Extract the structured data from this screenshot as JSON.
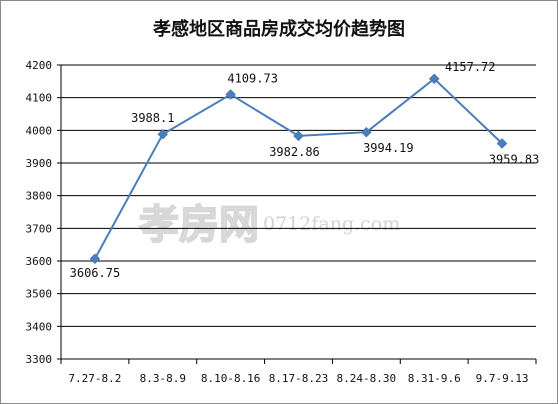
{
  "chart_data": {
    "type": "line",
    "title": "孝感地区商品房成交均价趋势图",
    "categories": [
      "7.27-8.2",
      "8.3-8.9",
      "8.10-8.16",
      "8.17-8.23",
      "8.24-8.30",
      "8.31-9.6",
      "9.7-9.13"
    ],
    "values": [
      3606.75,
      3988.1,
      4109.73,
      3982.86,
      3994.19,
      4157.72,
      3959.83
    ],
    "data_labels": [
      "3606.75",
      "3988.1",
      "4109.73",
      "3982.86",
      "3994.19",
      "4157.72",
      "3959.83"
    ],
    "yticks": [
      "3300",
      "3400",
      "3500",
      "3600",
      "3700",
      "3800",
      "3900",
      "4000",
      "4100",
      "4200"
    ],
    "ylim": [
      3300,
      4200
    ],
    "grid": true,
    "line_color": "#4a7ebb",
    "marker_color": "#4a7ebb",
    "watermark": {
      "logo_text": "孝房网",
      "url": "0712fang.com"
    }
  }
}
